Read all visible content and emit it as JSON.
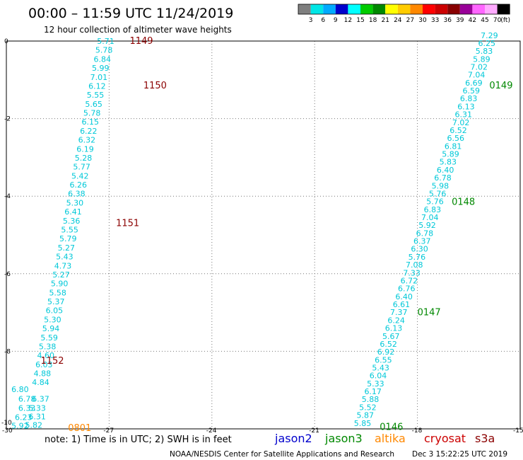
{
  "header": {
    "title": "00:00 – 11:59 UTC 11/24/2019",
    "subtitle": "12 hour collection of altimeter wave heights"
  },
  "colorbar": {
    "colors": [
      "#7f7f7f",
      "#00e6e6",
      "#00aaff",
      "#0000cc",
      "#00ffff",
      "#00cc00",
      "#008800",
      "#ffff00",
      "#ffcc00",
      "#ff8800",
      "#ff0000",
      "#cc0000",
      "#880000",
      "#990099",
      "#ff66ff",
      "#ffaaff",
      "#000000"
    ],
    "labels": [
      "3",
      "6",
      "9",
      "12",
      "15",
      "18",
      "21",
      "24",
      "27",
      "30",
      "33",
      "36",
      "39",
      "42",
      "45",
      "70",
      "(ft)"
    ]
  },
  "chart_data": {
    "type": "scatter",
    "xlim": [
      -30,
      -15
    ],
    "ylim": [
      -10,
      0
    ],
    "x_ticks": [
      "-30",
      "-27",
      "-24",
      "-21",
      "-18",
      "-15"
    ],
    "y_ticks": [
      "0",
      "-2",
      "-4",
      "-6",
      "-8",
      "-10"
    ],
    "grid": true,
    "tracks": [
      {
        "name": "west",
        "values": [
          "5.71",
          "5.78",
          "6.84",
          "5.99",
          "7.01",
          "6.12",
          "5.55",
          "5.65",
          "5.78",
          "6.15",
          "6.22",
          "6.32",
          "6.19",
          "5.28",
          "5.77",
          "5.42",
          "6.26",
          "6.38",
          "5.30",
          "6.41",
          "5.36",
          "5.55",
          "5.79",
          "5.27",
          "5.43",
          "4.73",
          "5.27",
          "5.90",
          "5.58",
          "5.37",
          "6.05",
          "5.30",
          "5.94",
          "5.59",
          "5.38",
          "4.60",
          "6.03",
          "4.88",
          "4.84"
        ],
        "start": [
          -27.1,
          0.0
        ],
        "end": [
          -29.0,
          -8.8
        ]
      },
      {
        "name": "west-tail",
        "values": [
          "6.80",
          "6.78",
          "6.37",
          "6.33",
          "5.33",
          "6.23",
          "6.31",
          "5.92",
          "5.82"
        ],
        "points": [
          [
            -29.6,
            -8.98
          ],
          [
            -29.4,
            -9.22
          ],
          [
            -29.0,
            -9.22
          ],
          [
            -29.4,
            -9.46
          ],
          [
            -29.1,
            -9.46
          ],
          [
            -29.5,
            -9.7
          ],
          [
            -29.1,
            -9.68
          ],
          [
            -29.6,
            -9.92
          ],
          [
            -29.2,
            -9.9
          ]
        ]
      },
      {
        "name": "east",
        "values": [
          "7.29",
          "6.25",
          "5.83",
          "5.89",
          "7.02",
          "7.04",
          "6.69",
          "6.59",
          "6.83",
          "6.13",
          "6.31",
          "7.02",
          "6.52",
          "6.56",
          "6.81",
          "5.89",
          "5.83",
          "6.40",
          "6.78",
          "5.98",
          "5.76",
          "5.76",
          "6.83",
          "7.04",
          "5.92",
          "6.78",
          "6.37",
          "6.30",
          "5.76",
          "7.08",
          "7.33",
          "6.72",
          "6.76",
          "6.40",
          "6.61",
          "7.37",
          "6.24",
          "6.13",
          "5.67",
          "6.52",
          "6.92",
          "6.55",
          "5.43",
          "6.04",
          "5.33",
          "6.17",
          "5.88",
          "5.52",
          "5.87",
          "5.85"
        ],
        "start": [
          -15.9,
          0.15
        ],
        "end": [
          -19.6,
          -9.85
        ]
      }
    ],
    "time_labels": [
      {
        "text": "1149",
        "x": -26.4,
        "y": 0.0,
        "color": "#8b0000"
      },
      {
        "text": "1150",
        "x": -26.0,
        "y": -1.15,
        "color": "#8b0000"
      },
      {
        "text": "1151",
        "x": -26.8,
        "y": -4.7,
        "color": "#8b0000"
      },
      {
        "text": "1152",
        "x": -29.0,
        "y": -8.25,
        "color": "#8b0000"
      },
      {
        "text": "0801",
        "x": -28.2,
        "y": -9.98,
        "color": "#ff8800"
      },
      {
        "text": "0149",
        "x": -15.9,
        "y": -1.15,
        "color": "#008800"
      },
      {
        "text": "0148",
        "x": -17.0,
        "y": -4.15,
        "color": "#008800"
      },
      {
        "text": "0147",
        "x": -18.0,
        "y": -7.0,
        "color": "#008800"
      },
      {
        "text": "0146",
        "x": -19.1,
        "y": -9.95,
        "color": "#008800"
      }
    ]
  },
  "footer": {
    "note": "note: 1) Time is in UTC; 2) SWH is in feet",
    "legend": [
      {
        "label": "jason2",
        "color": "#0000cc"
      },
      {
        "label": "jason3",
        "color": "#008800"
      },
      {
        "label": "altika",
        "color": "#ff8800"
      },
      {
        "label": "cryosat",
        "color": "#cc0000"
      },
      {
        "label": "s3a",
        "color": "#8b0000"
      }
    ],
    "credit": "NOAA/NESDIS Center for Satellite Applications and Research",
    "timestamp": "Dec  3 15:22:25 UTC 2019"
  },
  "style": {
    "swh_color": "#00c8d8"
  }
}
